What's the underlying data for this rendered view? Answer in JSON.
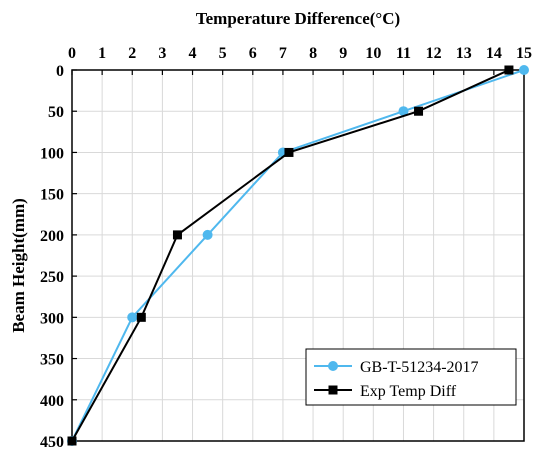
{
  "chart_data": {
    "type": "line",
    "xlabel": "Temperature Difference(°C)",
    "ylabel": "Beam Height(mm)",
    "xlim": [
      0,
      15
    ],
    "ylim": [
      0,
      450
    ],
    "y_inverted": true,
    "x_axis_position": "top",
    "x_ticks": [
      0,
      1,
      2,
      3,
      4,
      5,
      6,
      7,
      8,
      9,
      10,
      11,
      12,
      13,
      14,
      15
    ],
    "y_ticks": [
      0,
      50,
      100,
      150,
      200,
      250,
      300,
      350,
      400,
      450
    ],
    "grid": true,
    "legend_position": "bottom-right",
    "series": [
      {
        "name": "GB-T-51234-2017",
        "color": "#4fb8ee",
        "marker": "circle",
        "points": [
          [
            0,
            450
          ],
          [
            2,
            300
          ],
          [
            4.5,
            200
          ],
          [
            7,
            100
          ],
          [
            11,
            50
          ],
          [
            15,
            0
          ]
        ]
      },
      {
        "name": "Exp Temp Diff",
        "color": "#000000",
        "marker": "square",
        "points": [
          [
            0,
            450
          ],
          [
            2.3,
            300
          ],
          [
            3.5,
            200
          ],
          [
            7.2,
            100
          ],
          [
            11.5,
            50
          ],
          [
            14.5,
            0
          ]
        ]
      }
    ]
  }
}
